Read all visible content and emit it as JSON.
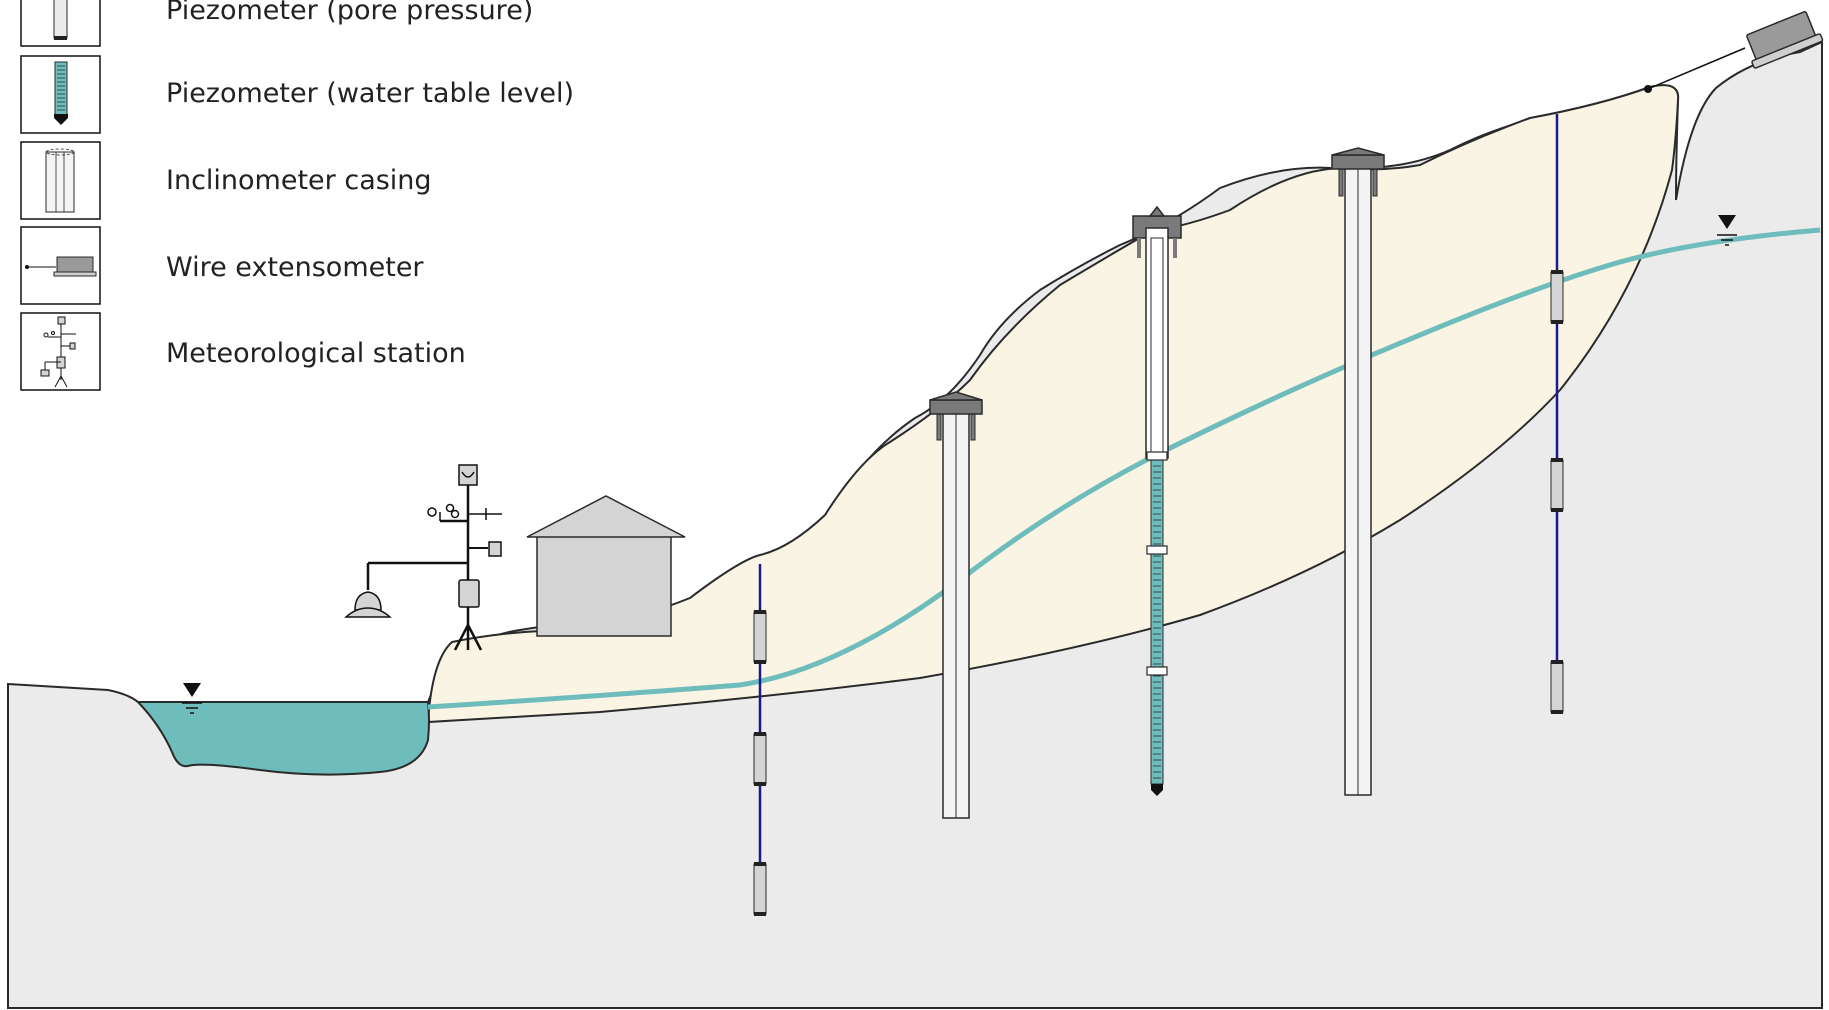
{
  "legend": {
    "items": [
      {
        "label": "Piezometer (pore pressure)",
        "icon": "piezometer-pore-pressure-icon"
      },
      {
        "label": "Piezometer (water table level)",
        "icon": "piezometer-water-table-icon"
      },
      {
        "label": "Inclinometer casing",
        "icon": "inclinometer-casing-icon"
      },
      {
        "label": "Wire extensometer",
        "icon": "wire-extensometer-icon"
      },
      {
        "label": "Meteorological station",
        "icon": "meteorological-station-icon"
      }
    ]
  },
  "colors": {
    "bedrock": "#ebebeb",
    "landslide_body": "#faf4e4",
    "water": "#6fbcbc",
    "water_table_line": "#6fbcbc",
    "piezometer_cable": "#1a1a8c",
    "outline": "#2a2a2a",
    "instrument_gray": "#d4d4d4",
    "cap_gray": "#7a7a7a"
  }
}
